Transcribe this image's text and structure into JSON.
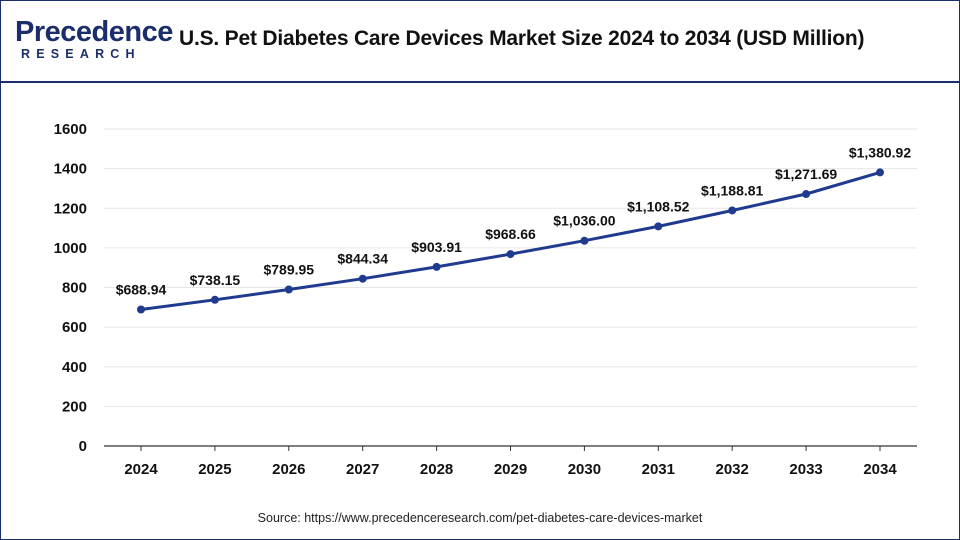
{
  "header": {
    "logo_main": "Precedence",
    "logo_sub": "RESEARCH",
    "title": "U.S. Pet Diabetes Care Devices Market Size 2024 to 2034 (USD Million)"
  },
  "footer": {
    "source": "Source: https://www.precedenceresearch.com/pet-diabetes-care-devices-market"
  },
  "colors": {
    "line": "#1f3a8f",
    "brand": "#1b2d6b",
    "grid": "#e6e6e6",
    "axis": "#333333"
  },
  "chart_data": {
    "type": "line",
    "title": "U.S. Pet Diabetes Care Devices Market Size 2024 to 2034 (USD Million)",
    "xlabel": "",
    "ylabel": "",
    "categories": [
      "2024",
      "2025",
      "2026",
      "2027",
      "2028",
      "2029",
      "2030",
      "2031",
      "2032",
      "2033",
      "2034"
    ],
    "values": [
      688.94,
      738.15,
      789.95,
      844.34,
      903.91,
      968.66,
      1036.0,
      1108.52,
      1188.81,
      1271.69,
      1380.92
    ],
    "data_labels": [
      "$688.94",
      "$738.15",
      "$789.95",
      "$844.34",
      "$903.91",
      "$968.66",
      "$1,036.00",
      "$1,108.52",
      "$1,188.81",
      "$1,271.69",
      "$1,380.92"
    ],
    "yticks": [
      0,
      200,
      400,
      600,
      800,
      1000,
      1200,
      1400,
      1600
    ],
    "ylim": [
      0,
      1600
    ],
    "grid": true,
    "legend": "none"
  }
}
